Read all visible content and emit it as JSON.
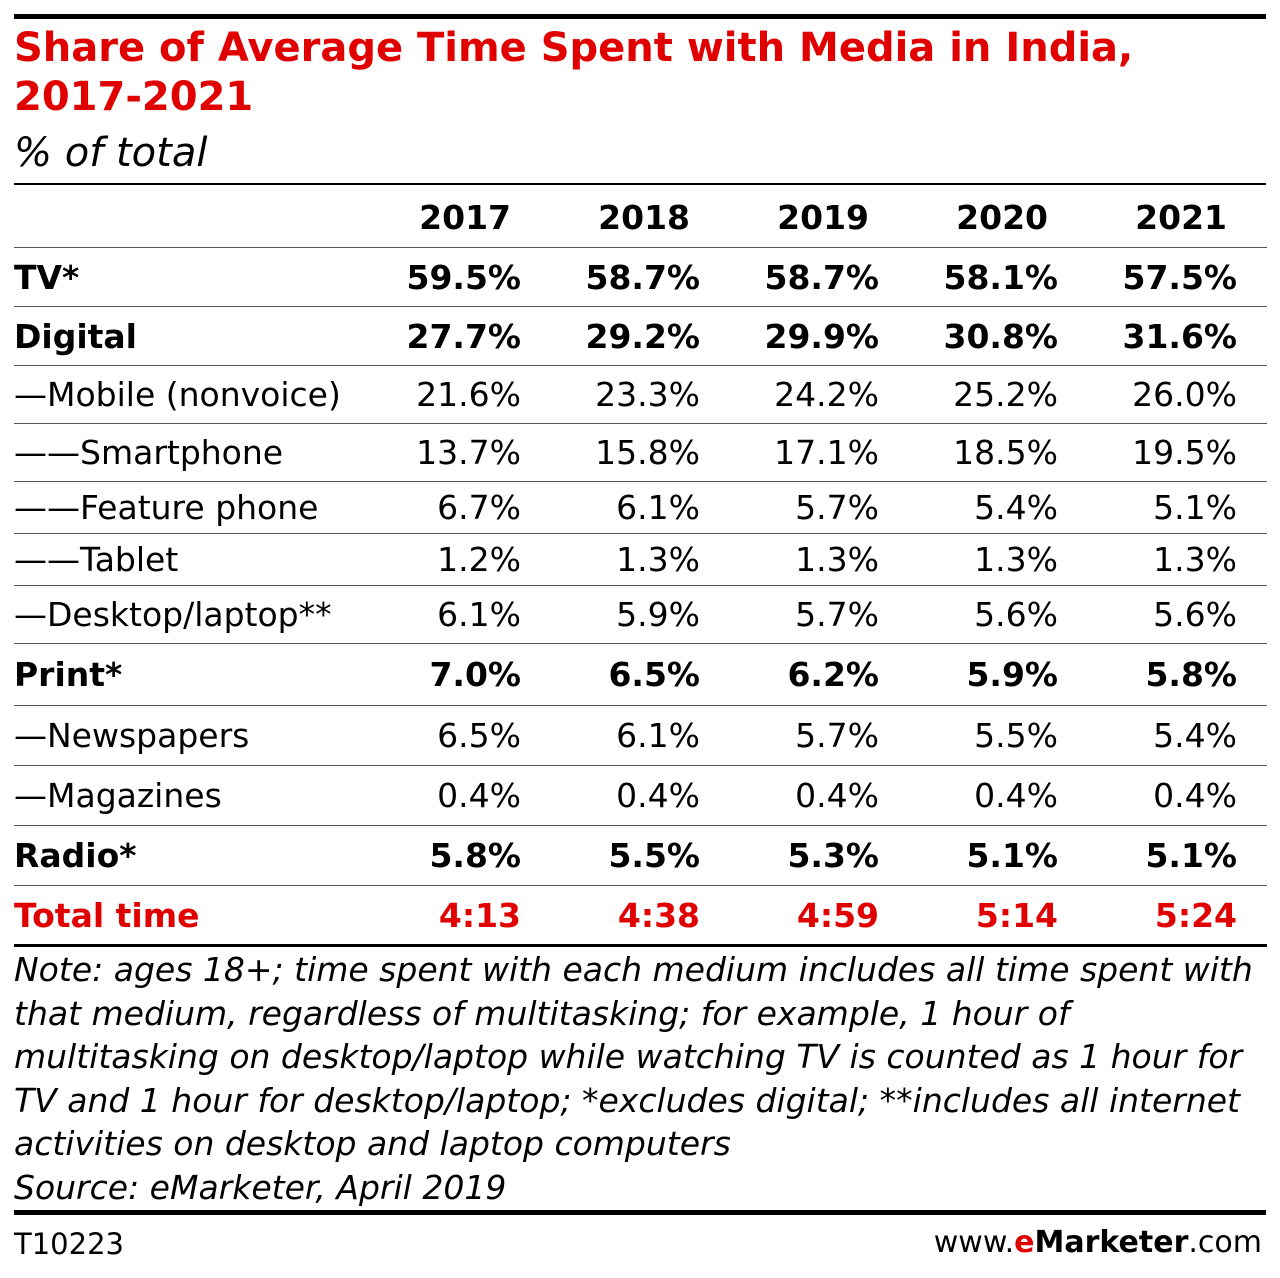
{
  "chart_data": {
    "type": "table",
    "title_line1": "Share of Average Time Spent with Media in India,",
    "title_line2": "2017-2021",
    "subtitle": "% of total",
    "columns": [
      "2017",
      "2018",
      "2019",
      "2020",
      "2021"
    ],
    "rows": [
      {
        "label": "TV*",
        "style": "bold",
        "values": [
          "59.5%",
          "58.7%",
          "58.7%",
          "58.1%",
          "57.5%"
        ]
      },
      {
        "label": "Digital",
        "style": "bold",
        "values": [
          "27.7%",
          "29.2%",
          "29.9%",
          "30.8%",
          "31.6%"
        ]
      },
      {
        "label": "—Mobile (nonvoice)",
        "style": "normal",
        "values": [
          "21.6%",
          "23.3%",
          "24.2%",
          "25.2%",
          "26.0%"
        ]
      },
      {
        "label": "——Smartphone",
        "style": "normal",
        "values": [
          "13.7%",
          "15.8%",
          "17.1%",
          "18.5%",
          "19.5%"
        ]
      },
      {
        "label": "——Feature phone",
        "style": "normal",
        "values": [
          "6.7%",
          "6.1%",
          "5.7%",
          "5.4%",
          "5.1%"
        ]
      },
      {
        "label": "——Tablet",
        "style": "normal",
        "values": [
          "1.2%",
          "1.3%",
          "1.3%",
          "1.3%",
          "1.3%"
        ]
      },
      {
        "label": "—Desktop/laptop**",
        "style": "normal",
        "values": [
          "6.1%",
          "5.9%",
          "5.7%",
          "5.6%",
          "5.6%"
        ]
      },
      {
        "label": "Print*",
        "style": "bold",
        "values": [
          "7.0%",
          "6.5%",
          "6.2%",
          "5.9%",
          "5.8%"
        ]
      },
      {
        "label": "—Newspapers",
        "style": "normal",
        "values": [
          "6.5%",
          "6.1%",
          "5.7%",
          "5.5%",
          "5.4%"
        ]
      },
      {
        "label": "—Magazines",
        "style": "normal",
        "values": [
          "0.4%",
          "0.4%",
          "0.4%",
          "0.4%",
          "0.4%"
        ]
      },
      {
        "label": "Radio*",
        "style": "bold",
        "values": [
          "5.8%",
          "5.5%",
          "5.3%",
          "5.1%",
          "5.1%"
        ]
      },
      {
        "label": "Total time",
        "style": "red",
        "values": [
          "4:13",
          "4:38",
          "4:59",
          "5:14",
          "5:24"
        ]
      }
    ],
    "note": "Note: ages 18+; time spent with each medium includes all time spent with that medium, regardless of multitasking; for example, 1 hour of multitasking on desktop/laptop while watching TV is counted as 1 hour for TV and 1 hour for desktop/laptop; *excludes digital; **includes all internet activities on desktop and laptop computers",
    "source": "Source: eMarketer, April 2019"
  },
  "footer": {
    "chart_id": "T10223",
    "brand_prefix": "www.",
    "brand_e": "e",
    "brand_name": "Marketer",
    "brand_suffix": ".com"
  },
  "colors": {
    "accent": "#e00000",
    "text": "#000000",
    "background": "#ffffff"
  }
}
